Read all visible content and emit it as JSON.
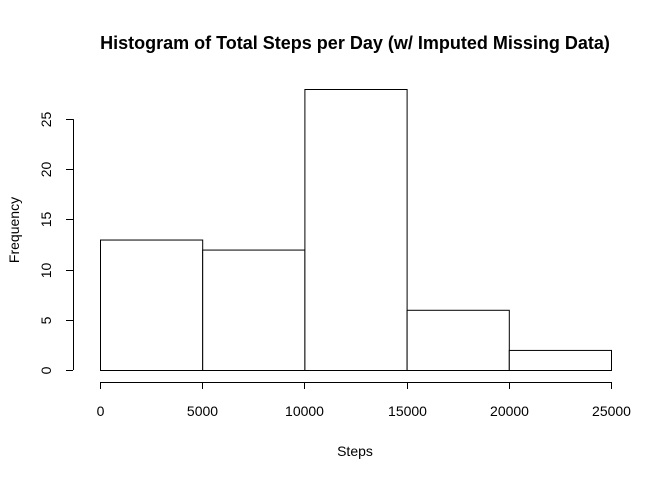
{
  "chart_data": {
    "type": "bar",
    "title": "Histogram of Total Steps per Day (w/ Imputed Missing Data)",
    "xlabel": "Steps",
    "ylabel": "Frequency",
    "bins": [
      {
        "start": 0,
        "end": 5000,
        "count": 13
      },
      {
        "start": 5000,
        "end": 10000,
        "count": 12
      },
      {
        "start": 10000,
        "end": 15000,
        "count": 28
      },
      {
        "start": 15000,
        "end": 20000,
        "count": 6
      },
      {
        "start": 20000,
        "end": 25000,
        "count": 2
      }
    ],
    "xticks": [
      0,
      5000,
      10000,
      15000,
      20000,
      25000
    ],
    "yticks": [
      0,
      5,
      10,
      15,
      20,
      25
    ],
    "xlim": [
      0,
      25000
    ],
    "ylim": [
      0,
      28
    ],
    "grid": false,
    "bar_fill": "#ffffff",
    "bar_stroke": "#000000"
  }
}
